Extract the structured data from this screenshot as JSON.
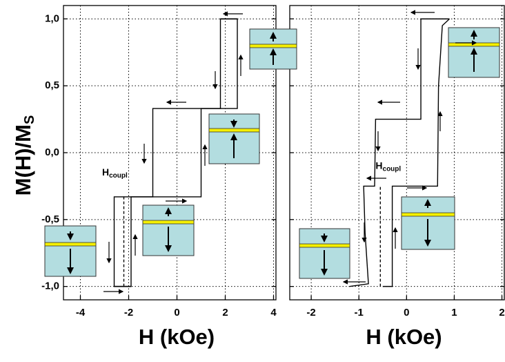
{
  "chart_data": [
    {
      "type": "line",
      "xlabel": "H (kOe)",
      "ylabel": {
        "main": "M(H)/M",
        "sub": "S"
      },
      "annotation": {
        "text": "H",
        "sub": "coupl"
      },
      "xlim": [
        -4.7,
        4.1
      ],
      "xticks": [
        -4,
        -2,
        0,
        2,
        4
      ],
      "ylim": [
        -1.1,
        1.1
      ],
      "yticks": [
        {
          "value": -1,
          "label": "-1,0"
        },
        {
          "value": -0.5,
          "label": "-0,5"
        },
        {
          "value": 0,
          "label": "0,0"
        },
        {
          "value": 0.5,
          "label": "0,5"
        },
        {
          "value": 1,
          "label": "1,0"
        }
      ],
      "grid": true,
      "series": [
        {
          "color": "#000000",
          "style": "solid",
          "x": [
            2.5,
            1.8,
            1.8,
            -1.0,
            -1.0,
            -2.6,
            -2.6,
            -1.9
          ],
          "values": [
            1,
            1,
            0.33,
            0.33,
            -0.33,
            -0.33,
            -1,
            -1
          ]
        },
        {
          "color": "#000000",
          "style": "solid",
          "x": [
            -2.6,
            -1.9,
            -1.9,
            1.0,
            1.0,
            2.5,
            2.5,
            1.8
          ],
          "values": [
            -1,
            -1,
            -0.33,
            -0.33,
            0.33,
            0.33,
            1,
            1
          ]
        },
        {
          "color": "#000000",
          "style": "dashed",
          "x": [
            -2.2,
            -2.2
          ],
          "values": [
            -1,
            -0.33
          ]
        }
      ]
    },
    {
      "type": "line",
      "xlabel": "H (kOe)",
      "annotation": {
        "text": "H",
        "sub": "coupl"
      },
      "xlim": [
        -2.45,
        2.05
      ],
      "xticks": [
        -2,
        -1,
        0,
        1,
        2
      ],
      "grid": true,
      "series": [
        {
          "color": "#000000",
          "style": "solid",
          "x": [
            0.9,
            0.3,
            0.3,
            -0.65,
            -0.67,
            -0.9,
            -0.87,
            -0.8,
            -1.2
          ],
          "values": [
            1,
            1,
            0.25,
            0.25,
            -0.25,
            -0.25,
            -0.6,
            -0.98,
            -1
          ]
        },
        {
          "color": "#000000",
          "style": "solid",
          "x": [
            -0.5,
            -0.3,
            -0.3,
            0.65,
            0.67,
            0.75,
            0.9
          ],
          "values": [
            -1,
            -1,
            -0.25,
            -0.25,
            0.5,
            0.95,
            1
          ]
        },
        {
          "color": "#000000",
          "style": "dashed",
          "x": [
            -0.55,
            -0.55
          ],
          "values": [
            -1,
            -0.25
          ]
        }
      ]
    }
  ]
}
